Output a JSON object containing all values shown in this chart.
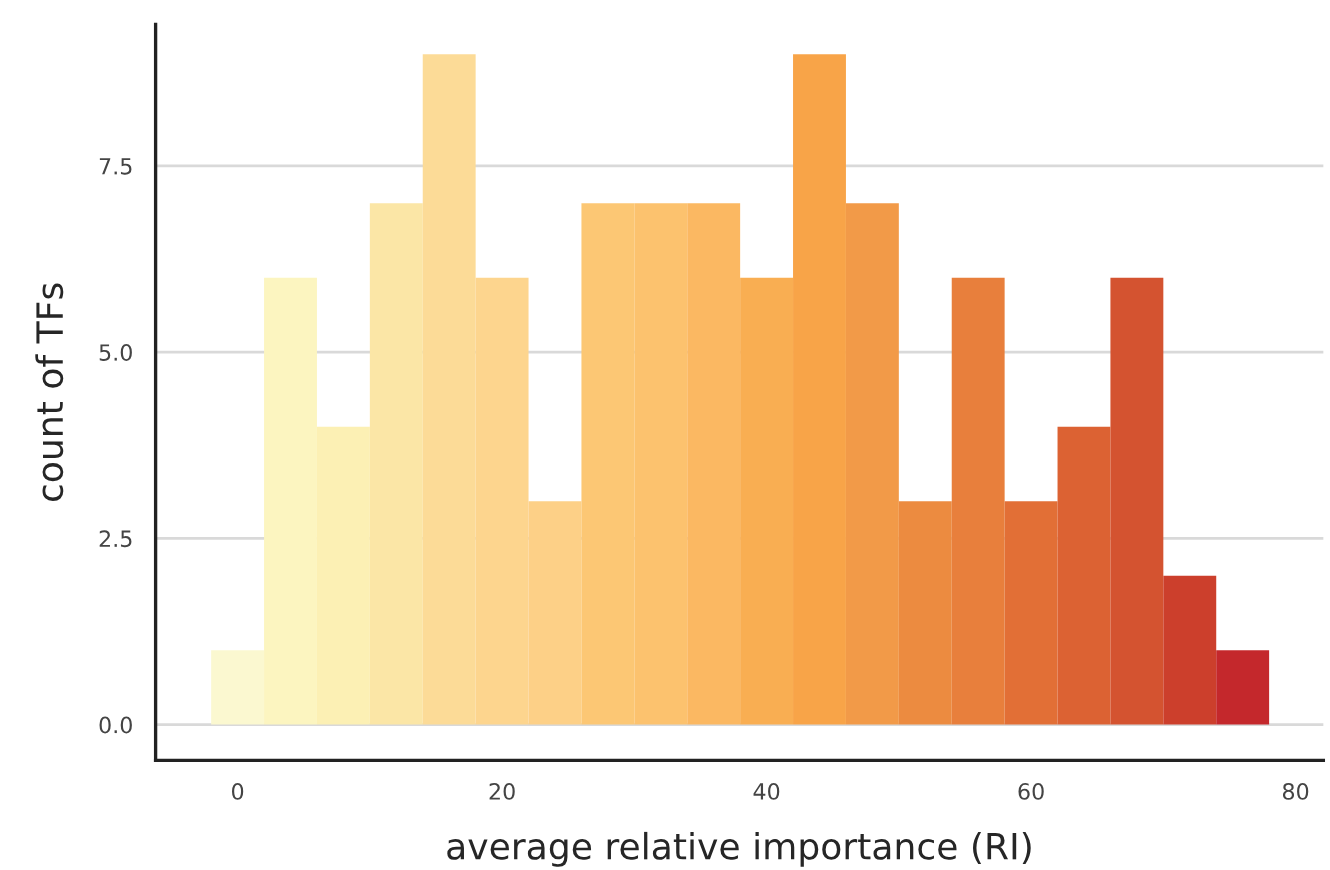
{
  "chart_data": {
    "type": "histogram",
    "xlabel": "average relative importance (RI)",
    "ylabel": "count of TFs",
    "bins": [
      -2,
      2,
      6,
      10,
      14,
      18,
      22,
      26,
      30,
      34,
      38,
      42,
      46,
      50,
      54,
      58,
      62,
      66,
      70,
      74,
      78
    ],
    "values": [
      1,
      6,
      4,
      7,
      9,
      6,
      3,
      7,
      7,
      7,
      6,
      9,
      7,
      3,
      6,
      3,
      4,
      6,
      2,
      1
    ],
    "colors": [
      "#fbf8d0",
      "#fcf5c0",
      "#fcf0b4",
      "#fbe6a6",
      "#fcdb97",
      "#fdd58e",
      "#fdd087",
      "#fcc774",
      "#fcc26e",
      "#fbb862",
      "#f9ae52",
      "#f8a448",
      "#f29a48",
      "#ec8b40",
      "#e87f3c",
      "#e26f36",
      "#dc6233",
      "#d45330",
      "#cc3f2c",
      "#c4282c"
    ],
    "xlim": [
      -6.2,
      82.1
    ],
    "ylim": [
      -0.48,
      9.4
    ],
    "xticks": [
      0,
      20,
      40,
      60,
      80
    ],
    "yticks": [
      {
        "value": 0,
        "label": "0.0"
      },
      {
        "value": 2.5,
        "label": "2.5"
      },
      {
        "value": 5,
        "label": "5.0"
      },
      {
        "value": 7.5,
        "label": "7.5"
      }
    ],
    "grid": "y"
  }
}
